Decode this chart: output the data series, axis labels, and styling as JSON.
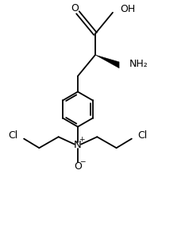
{
  "bg_color": "#ffffff",
  "fig_width": 2.33,
  "fig_height": 2.97,
  "dpi": 100,
  "line_color": "#000000",
  "line_width": 1.3,
  "font_size_labels": 8.5,
  "xlim": [
    0,
    10
  ],
  "ylim": [
    0,
    12.75
  ]
}
